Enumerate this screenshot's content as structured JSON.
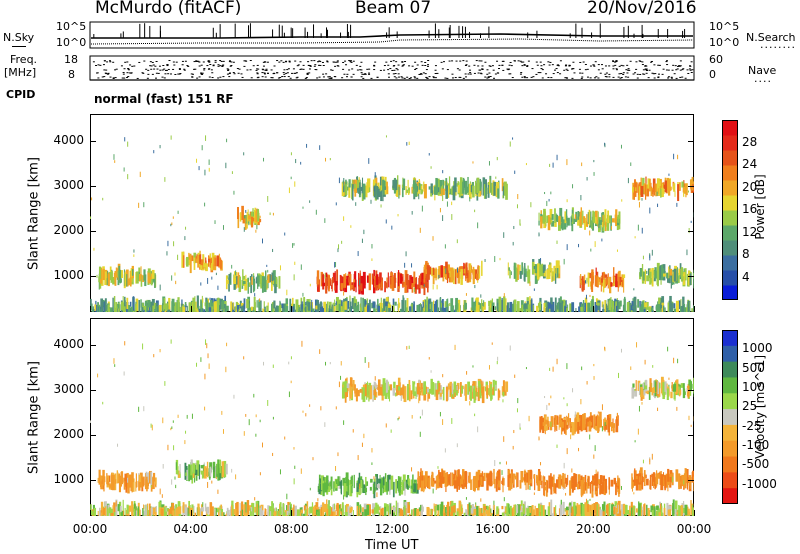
{
  "header": {
    "station": "McMurdo (fitACF)",
    "beam": "Beam 07",
    "date": "20/Nov/2016"
  },
  "sidepanel": {
    "nsky_label": "N.Sky",
    "nsearch_label": "N.Search",
    "nsearch_dots": "........",
    "freq_label": "Freq.",
    "freq_unit": "[MHz]",
    "nave_label": "Nave",
    "nave_dots": "....",
    "cpid_label": "CPID",
    "noise_top_left": "10^5",
    "noise_bottom_left": "10^0",
    "noise_top_right": "10^5",
    "noise_bottom_right": "10^0",
    "freq_top": "18",
    "freq_bottom": "8",
    "nave_top": "60",
    "nave_bottom": "0",
    "cpid_text": "normal (fast) 151 RF"
  },
  "chart_data": [
    {
      "type": "heatmap",
      "title": "",
      "xlabel": "",
      "ylabel": "Slant Range [km]",
      "ylim": [
        200,
        4600
      ],
      "yticks": [
        "1000",
        "2000",
        "3000",
        "4000"
      ],
      "xticks": [
        "00:00",
        "04:00",
        "08:00",
        "12:00",
        "16:00",
        "20:00",
        "00:00"
      ],
      "colorbar": {
        "label": "Power [dB]",
        "ticks": [
          "4",
          "8",
          "12",
          "16",
          "20",
          "24",
          "28"
        ],
        "colors": [
          "#0a1dd8",
          "#274fa8",
          "#3b6ea0",
          "#4f8e7a",
          "#5ca86a",
          "#9acb48",
          "#e6d530",
          "#f0a726",
          "#f07f1d",
          "#e5531a",
          "#e42a1a",
          "#e00f14"
        ]
      },
      "features": [
        {
          "start_ut": 0.0,
          "end_ut": 24.0,
          "range_km": 280,
          "value": 12
        },
        {
          "start_ut": 0.3,
          "end_ut": 2.6,
          "range_km": 980,
          "value": 16
        },
        {
          "start_ut": 3.6,
          "end_ut": 5.2,
          "range_km": 1300,
          "value": 20
        },
        {
          "start_ut": 5.4,
          "end_ut": 7.5,
          "range_km": 880,
          "value": 14
        },
        {
          "start_ut": 9.0,
          "end_ut": 13.4,
          "range_km": 860,
          "value": 26
        },
        {
          "start_ut": 13.2,
          "end_ut": 15.6,
          "range_km": 1080,
          "value": 22
        },
        {
          "start_ut": 16.6,
          "end_ut": 18.6,
          "range_km": 1100,
          "value": 14
        },
        {
          "start_ut": 19.4,
          "end_ut": 21.2,
          "range_km": 900,
          "value": 22
        },
        {
          "start_ut": 21.8,
          "end_ut": 24.0,
          "range_km": 1000,
          "value": 14
        },
        {
          "start_ut": 5.8,
          "end_ut": 6.8,
          "range_km": 2300,
          "value": 18
        },
        {
          "start_ut": 10.0,
          "end_ut": 16.5,
          "range_km": 2950,
          "value": 14
        },
        {
          "start_ut": 17.8,
          "end_ut": 21.0,
          "range_km": 2250,
          "value": 16
        },
        {
          "start_ut": 21.5,
          "end_ut": 24.0,
          "range_km": 2950,
          "value": 20
        }
      ]
    },
    {
      "type": "heatmap",
      "title": "",
      "xlabel": "Time UT",
      "ylabel": "Slant Range [km]",
      "ylim": [
        200,
        4600
      ],
      "yticks": [
        "1000",
        "2000",
        "3000",
        "4000"
      ],
      "xticks": [
        "00:00",
        "04:00",
        "08:00",
        "12:00",
        "16:00",
        "20:00",
        "00:00"
      ],
      "colorbar": {
        "label": "Velocity [m s^-1]",
        "ticks": [
          "1000",
          "500",
          "100",
          "25",
          "-25",
          "-100",
          "-500",
          "-1000"
        ],
        "colors": [
          "#1a2fd0",
          "#2f5fa8",
          "#3d8a5a",
          "#5fb840",
          "#9bd84a",
          "#c8c8bf",
          "#f3b33a",
          "#f39a2a",
          "#f0781c",
          "#ec4c18",
          "#e31612"
        ]
      },
      "features": [
        {
          "start_ut": 0.0,
          "end_ut": 24.0,
          "range_km": 280,
          "value": 0
        },
        {
          "start_ut": 0.3,
          "end_ut": 2.6,
          "range_km": 960,
          "value": -150
        },
        {
          "start_ut": 3.4,
          "end_ut": 5.4,
          "range_km": 1200,
          "value": 120
        },
        {
          "start_ut": 9.0,
          "end_ut": 13.0,
          "range_km": 880,
          "value": 150
        },
        {
          "start_ut": 13.0,
          "end_ut": 18.0,
          "range_km": 1000,
          "value": -250
        },
        {
          "start_ut": 18.0,
          "end_ut": 21.0,
          "range_km": 900,
          "value": -300
        },
        {
          "start_ut": 21.5,
          "end_ut": 24.0,
          "range_km": 1000,
          "value": -250
        },
        {
          "start_ut": 10.0,
          "end_ut": 16.5,
          "range_km": 3000,
          "value": -60
        },
        {
          "start_ut": 17.8,
          "end_ut": 21.0,
          "range_km": 2250,
          "value": -200
        },
        {
          "start_ut": 21.5,
          "end_ut": 24.0,
          "range_km": 3000,
          "value": 0
        }
      ]
    }
  ]
}
